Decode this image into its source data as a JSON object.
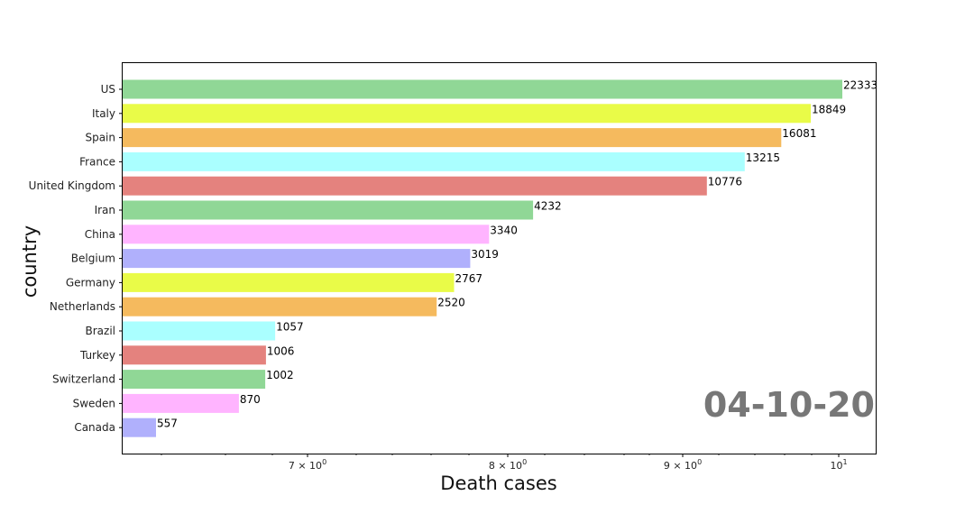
{
  "chart_data": {
    "type": "bar",
    "orientation": "horizontal",
    "xscale": "log",
    "categories": [
      "US",
      "Italy",
      "Spain",
      "France",
      "United Kingdom",
      "Iran",
      "China",
      "Belgium",
      "Germany",
      "Netherlands",
      "Brazil",
      "Turkey",
      "Switzerland",
      "Sweden",
      "Canada"
    ],
    "values": [
      22333,
      18849,
      16081,
      13215,
      10776,
      4232,
      3340,
      3019,
      2767,
      2520,
      1057,
      1006,
      1002,
      870,
      557
    ],
    "value_labels": [
      "22333",
      "18849",
      "16081",
      "13215",
      "10776",
      "4232",
      "3340",
      "3019",
      "2767",
      "2520",
      "1057",
      "1006",
      "1002",
      "870",
      "557"
    ],
    "bar_colors": [
      "#90d796",
      "#e9fb48",
      "#f5ba5e",
      "#aaffff",
      "#e4827e",
      "#90d796",
      "#ffb4ff",
      "#b0b0fc",
      "#e9fb48",
      "#f5ba5e",
      "#aaffff",
      "#e4827e",
      "#90d796",
      "#ffb4ff",
      "#b0b0fc"
    ],
    "xticks": [
      {
        "value": 7,
        "label": "7 × 10",
        "exp": "0"
      },
      {
        "value": 8,
        "label": "8 × 10",
        "exp": "0"
      },
      {
        "value": 9,
        "label": "9 × 10",
        "exp": "0"
      },
      {
        "value": 10,
        "label": "10",
        "exp": "1"
      }
    ],
    "xlabel": "Death cases",
    "ylabel": "country",
    "annotation": "04-10-20",
    "annotation_color": "#777777",
    "grid": false,
    "legend": "none"
  }
}
